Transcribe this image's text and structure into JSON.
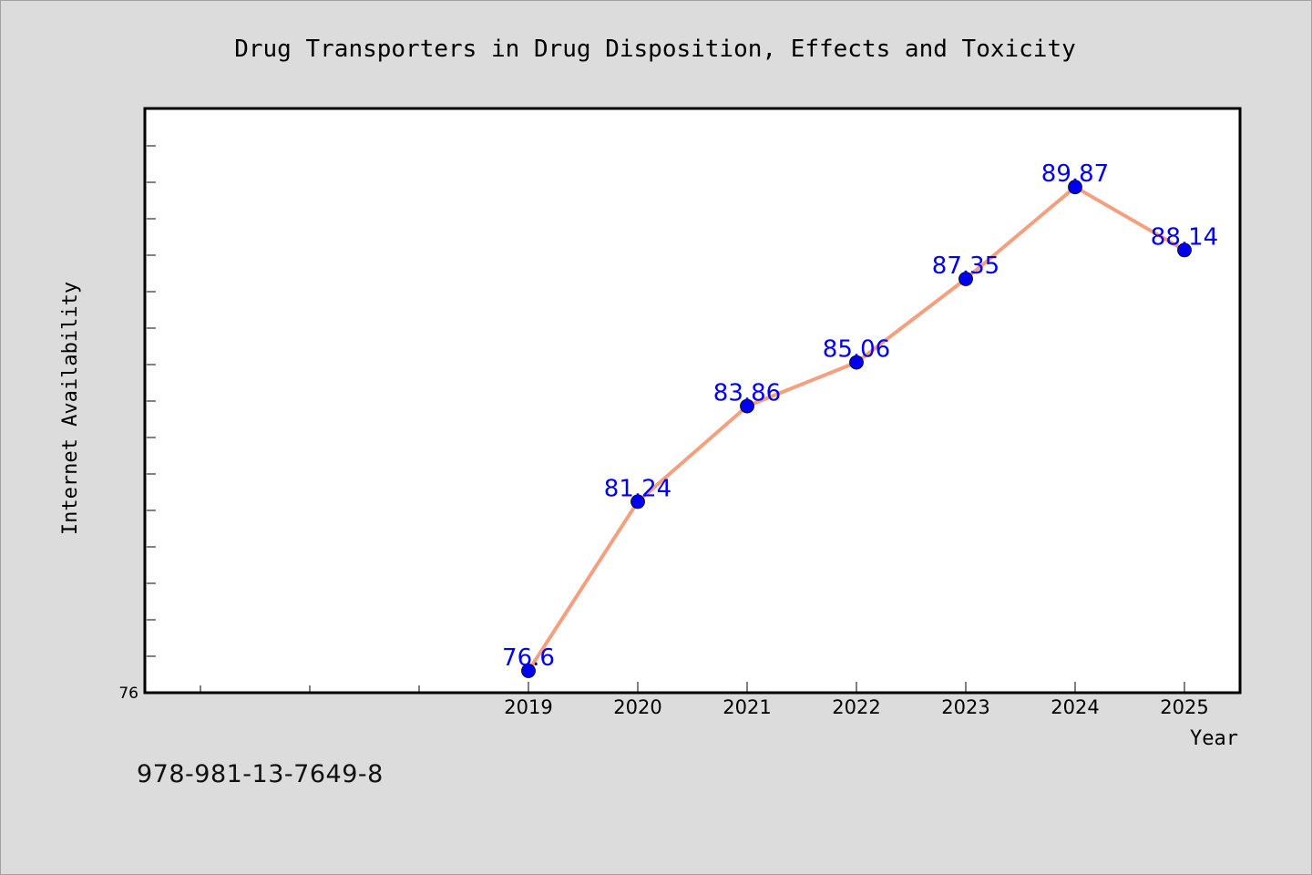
{
  "chart_data": {
    "type": "line",
    "title": "Drug Transporters in Drug Disposition, Effects and Toxicity",
    "xlabel": "Year",
    "ylabel": "Internet Availability",
    "categories": [
      "2019",
      "2020",
      "2021",
      "2022",
      "2023",
      "2024",
      "2025"
    ],
    "series": [
      {
        "values": [
          76.6,
          81.24,
          83.86,
          85.06,
          87.35,
          89.87,
          88.14
        ],
        "data_labels": [
          "76.6",
          "81.24",
          "83.86",
          "85.06",
          "87.35",
          "89.87",
          "88.14"
        ],
        "line_color": "#f4a07f",
        "marker_color": "#0000ee"
      }
    ],
    "ylim": [
      76,
      92
    ],
    "y_tick_labels": [
      "76"
    ],
    "grid": false,
    "legend": "none"
  },
  "footer": {
    "code": "978-981-13-7649-8"
  }
}
